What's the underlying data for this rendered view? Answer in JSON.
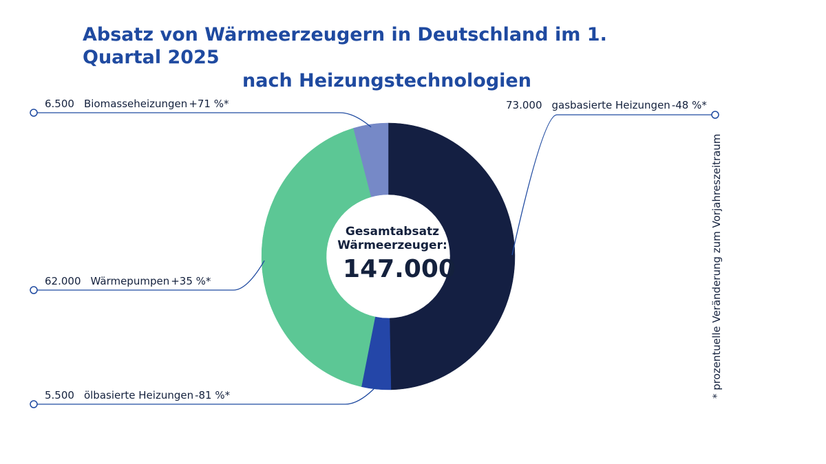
{
  "chart_data": {
    "type": "pie",
    "title_line1": "Absatz von Wärmeerzeugern in Deutschland im 1.",
    "title_line2": "Quartal 2025",
    "subtitle": "nach Heizungstechnologien",
    "center_label_line1": "Gesamtabsatz",
    "center_label_line2": "Wärmeerzeuger:",
    "center_value": "147.000",
    "slices": [
      {
        "name": "gasbasierte Heizungen",
        "value": 73000,
        "value_label": "73.000",
        "change": "-48 %*",
        "color": "#141f42"
      },
      {
        "name": "ölbasierte Heizungen",
        "value": 5500,
        "value_label": "5.500",
        "change": "-81 %*",
        "color": "#2446a8"
      },
      {
        "name": "Wärmepumpen",
        "value": 62000,
        "value_label": "62.000",
        "change": "+35 %*",
        "color": "#5cc795"
      },
      {
        "name": "Biomasseheizungen",
        "value": 6500,
        "value_label": "6.500",
        "change": "+71 %*",
        "color": "#7689c7"
      }
    ],
    "footnote": "* prozentuelle Veränderung zum Vorjahreszeitraum"
  }
}
